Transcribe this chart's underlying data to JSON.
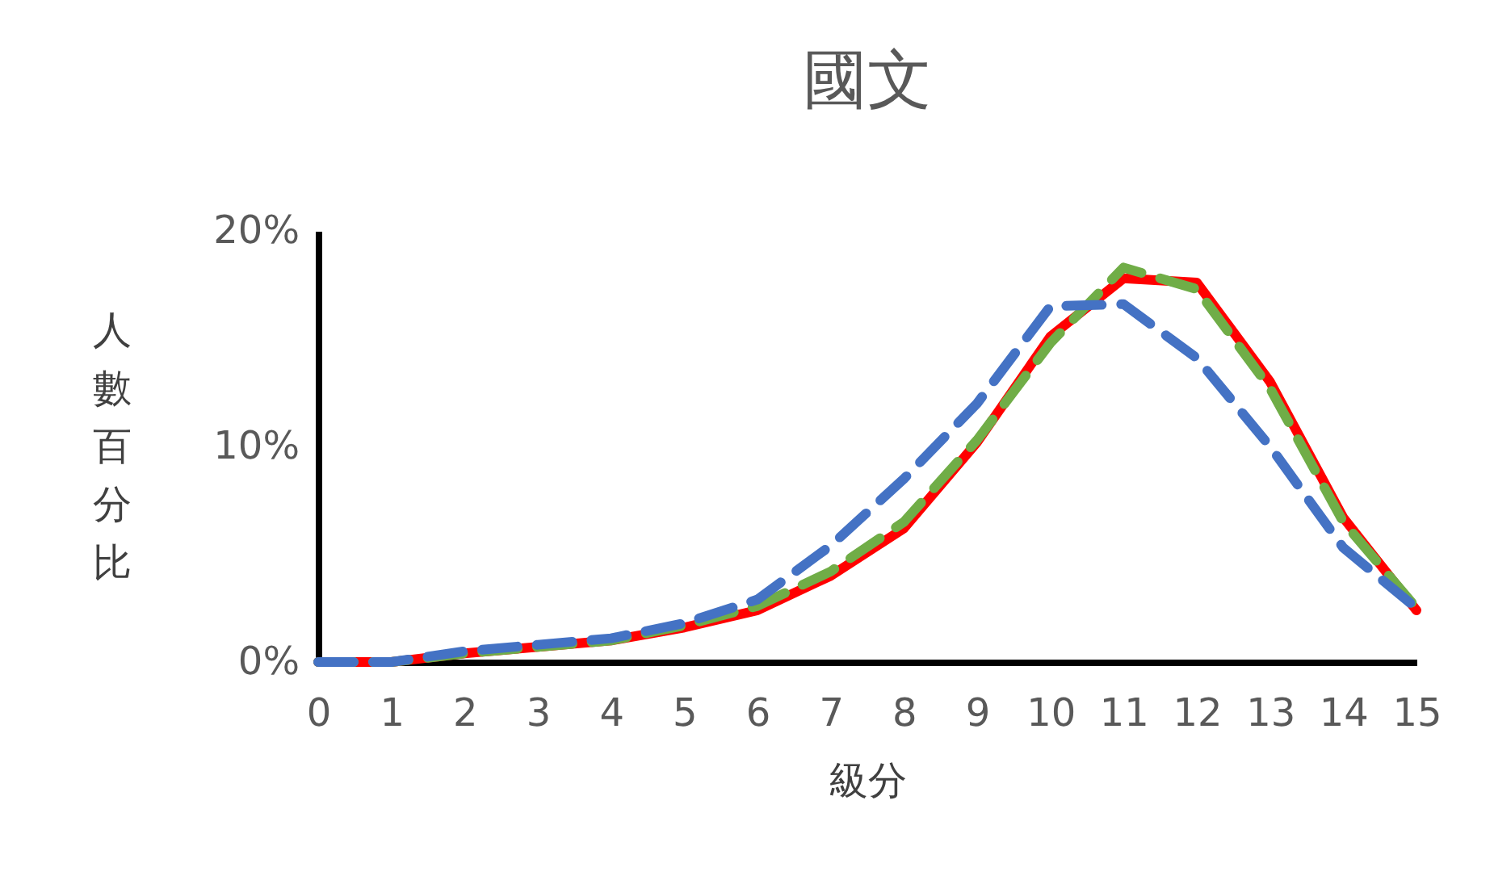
{
  "chart_data": {
    "type": "line",
    "title": "國文",
    "xlabel": "級分",
    "ylabel": "人數百分比",
    "x": [
      0,
      1,
      2,
      3,
      4,
      5,
      6,
      7,
      8,
      9,
      10,
      11,
      12,
      13,
      14,
      15
    ],
    "xlim": [
      0,
      15
    ],
    "xticks": [
      0,
      1,
      2,
      3,
      4,
      5,
      6,
      7,
      8,
      9,
      10,
      11,
      12,
      13,
      14,
      15
    ],
    "ylim": [
      0,
      20
    ],
    "yticks": [
      {
        "value": 0,
        "label": "0%"
      },
      {
        "value": 10,
        "label": "10%"
      },
      {
        "value": 20,
        "label": "20%"
      }
    ],
    "grid": false,
    "legend": false,
    "marker": "none",
    "series": [
      {
        "color": "#ff0000",
        "line_style": "solid",
        "values": [
          0,
          0,
          0.4,
          0.7,
          1.0,
          1.6,
          2.4,
          4.0,
          6.2,
          10.2,
          15.1,
          17.8,
          17.6,
          13.0,
          6.7,
          2.4
        ]
      },
      {
        "color": "#70ad47",
        "line_style": "dashed",
        "values": [
          0,
          0,
          0.4,
          0.7,
          1.0,
          1.7,
          2.6,
          4.2,
          6.5,
          10.3,
          14.8,
          18.3,
          17.3,
          12.7,
          6.5,
          2.5
        ]
      },
      {
        "color": "#4472c4",
        "line_style": "dashed",
        "values": [
          0,
          0,
          0.5,
          0.8,
          1.1,
          1.8,
          2.9,
          5.4,
          8.5,
          12.0,
          16.5,
          16.6,
          14.1,
          10.0,
          5.3,
          2.5
        ]
      }
    ]
  }
}
